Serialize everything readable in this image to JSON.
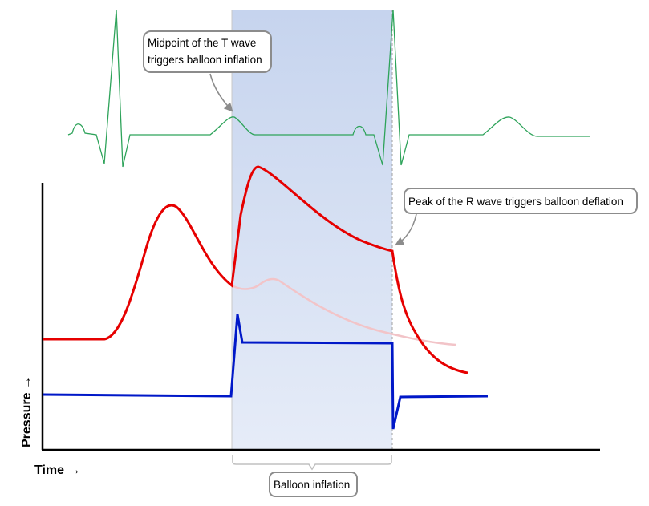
{
  "annotations": {
    "t_wave_line1": "Midpoint of the T wave",
    "t_wave_line2": "triggers balloon inflation",
    "r_wave": "Peak of the R wave triggers balloon deflation",
    "balloon_inflation": "Balloon inflation"
  },
  "axes": {
    "y_label": "Pressure →",
    "x_label": "Time →"
  },
  "colors": {
    "ecg": "#2ea35a",
    "augmented_pressure": "#e60000",
    "unassisted_pressure": "#f2c4c8",
    "balloon_pressure": "#0018c8",
    "inflation_band": "#c9d6ef",
    "callout_border": "#8c8c8c"
  }
}
